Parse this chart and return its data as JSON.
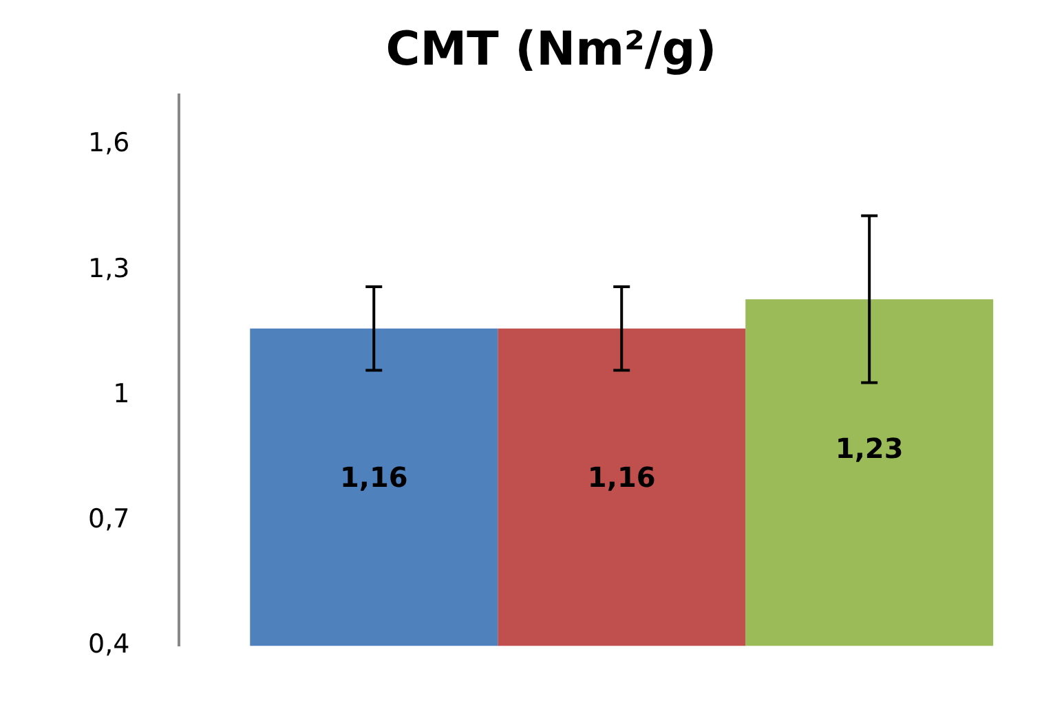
{
  "chart_data": {
    "type": "bar",
    "title": "CMT (Nm²/g)",
    "categories": [
      null
    ],
    "series": [
      {
        "color": "#4f81bd",
        "values": [
          1.16
        ],
        "errors": [
          0.1
        ],
        "value_labels": [
          "1,16"
        ]
      },
      {
        "color": "#c0504d",
        "values": [
          1.16
        ],
        "errors": [
          0.1
        ],
        "value_labels": [
          "1,16"
        ]
      },
      {
        "color": "#9bbb59",
        "values": [
          1.23
        ],
        "errors": [
          0.2
        ],
        "value_labels": [
          "1,23"
        ]
      }
    ],
    "ylim": [
      0.4,
      1.72
    ],
    "yticks": [
      {
        "value": 0.4,
        "label": "0,4"
      },
      {
        "value": 0.7,
        "label": "0,7"
      },
      1,
      {
        "value": 1.3,
        "label": "1,3"
      },
      {
        "value": 1.6,
        "label": "1,6"
      }
    ],
    "grid": false,
    "legend": false,
    "tick_labels": "y"
  }
}
